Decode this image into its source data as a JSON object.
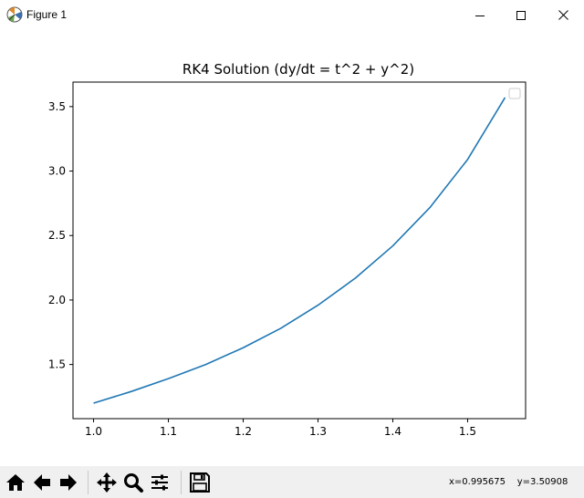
{
  "window": {
    "title": "Figure 1"
  },
  "toolbar": {
    "coords_x": "x=0.995675",
    "coords_y": "y=3.50908",
    "buttons": [
      "home-icon",
      "back-arrow-icon",
      "forward-arrow-icon",
      "pan-icon",
      "zoom-icon",
      "configure-subplots-icon",
      "save-icon"
    ]
  },
  "chart_data": {
    "type": "line",
    "title": "RK4 Solution  (dy/dt = t^2 + y^2)",
    "xlabel": "",
    "ylabel": "",
    "xlim": [
      0.9725,
      1.5775
    ],
    "ylim": [
      1.08,
      3.69
    ],
    "x_ticks": [
      1.0,
      1.1,
      1.2,
      1.3,
      1.4,
      1.5
    ],
    "x_tick_labels": [
      "1.0",
      "1.1",
      "1.2",
      "1.3",
      "1.4",
      "1.5"
    ],
    "y_ticks": [
      1.5,
      2.0,
      2.5,
      3.0,
      3.5
    ],
    "y_tick_labels": [
      "1.5",
      "2.0",
      "2.5",
      "3.0",
      "3.5"
    ],
    "grid": false,
    "legend": "top-right (empty)",
    "series": [
      {
        "color": "#1f77b4",
        "x": [
          1.0,
          1.05,
          1.1,
          1.15,
          1.2,
          1.25,
          1.3,
          1.35,
          1.4,
          1.45,
          1.5,
          1.55
        ],
        "y": [
          1.2,
          1.29,
          1.39,
          1.5,
          1.63,
          1.78,
          1.96,
          2.17,
          2.42,
          2.72,
          3.09,
          3.57
        ]
      }
    ]
  }
}
